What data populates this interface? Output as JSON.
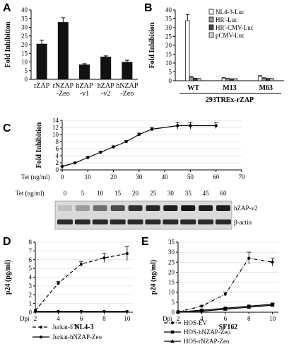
{
  "chart_data": [
    {
      "panel": "A",
      "type": "bar",
      "ylabel": "Fold Inhibition",
      "ylim": [
        0,
        40
      ],
      "yticks": [
        0,
        5,
        10,
        15,
        20,
        25,
        30,
        35,
        40
      ],
      "categories": [
        [
          "rZAP"
        ],
        [
          "rNZAP",
          "-Zeo"
        ],
        [
          "hZAP",
          "-v1"
        ],
        [
          "hZAP",
          "-v2"
        ],
        [
          "hNZAP",
          "-Zeo"
        ]
      ],
      "values": [
        20.5,
        33,
        8.5,
        13,
        10
      ],
      "errors": [
        2,
        2.5,
        0.5,
        0.5,
        1
      ],
      "color": "#111111"
    },
    {
      "panel": "B",
      "type": "bar",
      "ylabel": "Fold Inhibition",
      "ylim": [
        0,
        40
      ],
      "yticks": [
        0,
        5,
        10,
        15,
        20,
        25,
        30,
        35,
        40
      ],
      "categories": [
        "WT",
        "M13",
        "M63"
      ],
      "group_label": "293TREx-rZAP",
      "series": [
        {
          "name": "NL4-3-Luc",
          "values": [
            34,
            1.5,
            2.5
          ],
          "errors": [
            3.5,
            0.3,
            0.4
          ]
        },
        {
          "name": "HR'-Luc",
          "values": [
            2,
            1.1,
            1.5
          ],
          "errors": [
            0.3,
            0.2,
            0.2
          ]
        },
        {
          "name": "HR'-CMV-Luc",
          "values": [
            1.2,
            1,
            1.2
          ],
          "errors": [
            0.2,
            0.1,
            0.1
          ]
        },
        {
          "name": "pCMV-Luc",
          "values": [
            1.1,
            1,
            1.1
          ],
          "errors": [
            0.1,
            0.1,
            0.1
          ]
        }
      ]
    },
    {
      "panel": "C",
      "type": "line",
      "ylabel": "Fold Inhibition",
      "xlabel": "Tet (ng/ml)",
      "xlim": [
        0,
        70
      ],
      "xticks": [
        0,
        10,
        20,
        30,
        40,
        50,
        60,
        70
      ],
      "ylim": [
        0,
        14
      ],
      "yticks": [
        0,
        2,
        4,
        6,
        8,
        10,
        12,
        14
      ],
      "x": [
        0,
        5,
        10,
        15,
        20,
        25,
        30,
        35,
        45,
        50,
        60
      ],
      "y": [
        1,
        2,
        3.5,
        5,
        6.5,
        8,
        10,
        11.5,
        12.5,
        12.5,
        12.5
      ],
      "errors": [
        0.1,
        0.2,
        0.3,
        0.3,
        0.3,
        0.3,
        0.4,
        0.5,
        1,
        1,
        0.8
      ],
      "blot": {
        "row_label": "Tet (ng/ml)",
        "lanes": [
          "0",
          "5",
          "10",
          "15",
          "20",
          "25",
          "30",
          "35",
          "45",
          "60"
        ],
        "bands": [
          "hZAP-v2",
          "β-actin"
        ],
        "hzap_intensity": [
          0.05,
          0.25,
          0.5,
          0.7,
          0.85,
          0.9,
          0.95,
          1,
          0.95,
          0.95
        ]
      }
    },
    {
      "panel": "D",
      "type": "line",
      "ylabel": "p24 (pg/ml)",
      "xlabel": "NL4-3",
      "xprefix": "Dpi",
      "xticks": [
        2,
        4,
        6,
        8,
        10
      ],
      "xlim": [
        2,
        10.5
      ],
      "ylim": [
        0,
        8
      ],
      "yticks": [
        0,
        1,
        2,
        3,
        4,
        5,
        6,
        7,
        8
      ],
      "series": [
        {
          "name": "Jurkat-EV",
          "x": [
            2,
            4,
            6,
            8,
            10
          ],
          "y": [
            0.2,
            3.3,
            5.5,
            6.2,
            6.7
          ],
          "errors": [
            0,
            0.2,
            0.3,
            0.5,
            0.8
          ],
          "style": "dash"
        },
        {
          "name": "Jurkat-hNZAP-Zeo",
          "x": [
            2,
            4,
            6,
            8,
            10
          ],
          "y": [
            0.1,
            0.1,
            0.1,
            0.1,
            0.1
          ],
          "style": "solid"
        }
      ]
    },
    {
      "panel": "E",
      "type": "line",
      "ylabel": "p24 (ng/ml)",
      "xlabel": "SF162",
      "xprefix": "Dpi",
      "xticks": [
        2,
        4,
        6,
        8,
        10
      ],
      "xlim": [
        2,
        10.5
      ],
      "ylim": [
        0,
        35
      ],
      "yticks": [
        0,
        5,
        10,
        15,
        20,
        25,
        30,
        35
      ],
      "series": [
        {
          "name": "HOS-EV",
          "x": [
            2,
            4,
            6,
            8,
            10
          ],
          "y": [
            0.2,
            3,
            9,
            27,
            25
          ],
          "errors": [
            0,
            0.5,
            1,
            3,
            2
          ],
          "style": "dashdot"
        },
        {
          "name": "HOS-hNZAP-Zeo",
          "x": [
            2,
            4,
            6,
            8,
            10
          ],
          "y": [
            0.2,
            1,
            2,
            3,
            4
          ],
          "errors": [
            0,
            0.3,
            0.3,
            0.5,
            0.5
          ],
          "style": "solid-square"
        },
        {
          "name": "HOS-rNZAP-Zeo",
          "x": [
            2,
            4,
            6,
            8,
            10
          ],
          "y": [
            0.1,
            0.5,
            1.5,
            2.5,
            3.5
          ],
          "errors": [
            0,
            0.2,
            0.2,
            0.3,
            0.3
          ],
          "style": "solid-triangle"
        }
      ]
    }
  ]
}
